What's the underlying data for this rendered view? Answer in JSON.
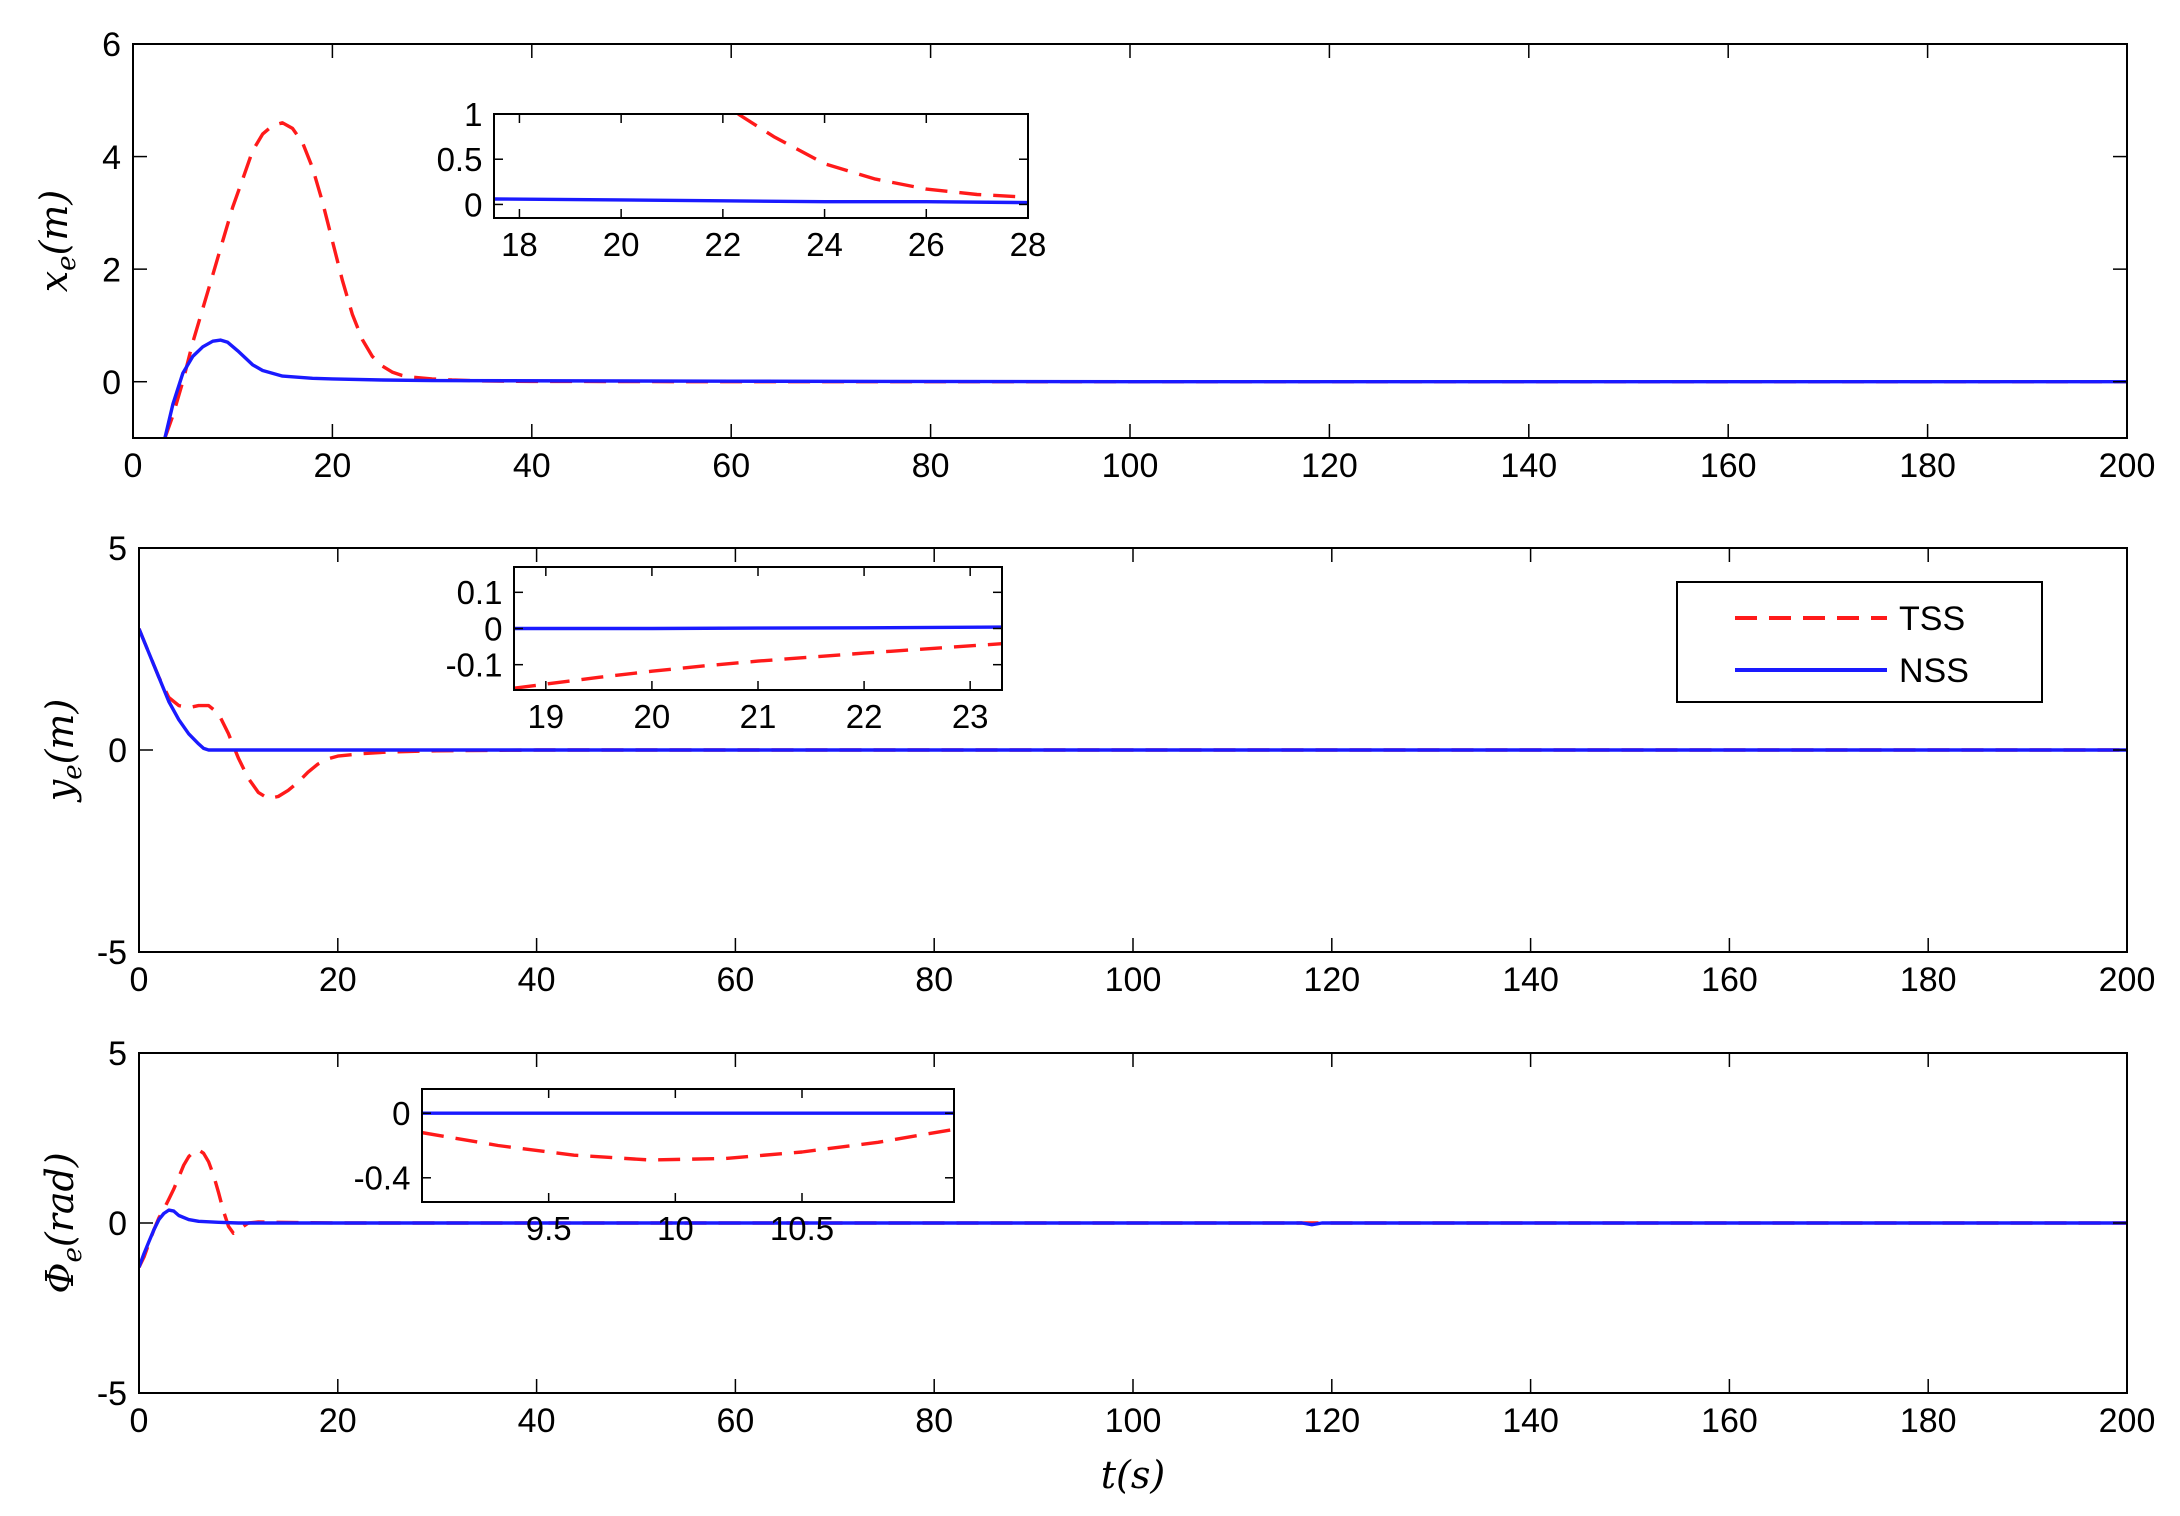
{
  "chart_data": [
    {
      "type": "line",
      "ylabel_sym": "x",
      "ylabel_sub": "e",
      "ylabel_unit": "(m)",
      "xlabel": "",
      "xlim": [
        0,
        200
      ],
      "ylim": [
        -1,
        6
      ],
      "xticks": [
        "0",
        "20",
        "40",
        "60",
        "80",
        "100",
        "120",
        "140",
        "160",
        "180",
        "200"
      ],
      "yticks": [
        "0",
        "2",
        "4",
        "6"
      ],
      "series": [
        {
          "name": "TSS",
          "color": "#ff1a1a",
          "style": "dashed",
          "x": [
            3.2,
            4,
            5,
            6,
            7,
            8,
            9,
            10,
            11,
            12,
            13,
            14,
            15,
            16,
            17,
            18,
            19,
            20,
            21,
            22,
            23,
            24,
            25,
            26,
            27,
            28,
            30,
            32,
            35,
            40,
            60,
            100,
            150,
            200
          ],
          "y": [
            -1,
            -0.6,
            0,
            0.7,
            1.3,
            1.9,
            2.5,
            3.1,
            3.6,
            4.1,
            4.4,
            4.55,
            4.6,
            4.5,
            4.25,
            3.8,
            3.2,
            2.5,
            1.8,
            1.2,
            0.75,
            0.45,
            0.28,
            0.17,
            0.11,
            0.08,
            0.05,
            0.03,
            0.015,
            0.005,
            0,
            0,
            0,
            0
          ]
        },
        {
          "name": "NSS",
          "color": "#1a1aff",
          "style": "solid",
          "x": [
            3.2,
            4,
            5,
            6,
            7,
            8,
            8.8,
            9.5,
            10.5,
            12,
            13,
            15,
            18,
            20,
            25,
            30,
            60,
            100,
            150,
            200
          ],
          "y": [
            -1,
            -0.4,
            0.15,
            0.45,
            0.62,
            0.72,
            0.74,
            0.7,
            0.55,
            0.3,
            0.2,
            0.1,
            0.06,
            0.05,
            0.03,
            0.02,
            0.01,
            0,
            0,
            0
          ]
        }
      ],
      "inset": {
        "xlim": [
          17.5,
          28
        ],
        "ylim": [
          -0.15,
          1
        ],
        "xticks": [
          "18",
          "20",
          "22",
          "24",
          "26",
          "28"
        ],
        "yticks": [
          "0",
          "0.5",
          "1"
        ],
        "series": [
          {
            "name": "TSS",
            "x": [
              22.3,
              23,
              24,
              25,
              26,
              27,
              28
            ],
            "y": [
              1,
              0.75,
              0.45,
              0.28,
              0.17,
              0.11,
              0.08
            ]
          },
          {
            "name": "NSS",
            "x": [
              17.5,
              20,
              22,
              24,
              26,
              28
            ],
            "y": [
              0.06,
              0.05,
              0.04,
              0.03,
              0.03,
              0.02
            ]
          }
        ]
      }
    },
    {
      "type": "line",
      "ylabel_sym": "y",
      "ylabel_sub": "e",
      "ylabel_unit": "(m)",
      "xlabel": "",
      "xlim": [
        0,
        200
      ],
      "ylim": [
        -5,
        5
      ],
      "xticks": [
        "0",
        "20",
        "40",
        "60",
        "80",
        "100",
        "120",
        "140",
        "160",
        "180",
        "200"
      ],
      "yticks": [
        "-5",
        "0",
        "5"
      ],
      "legend": {
        "placement": "top-right",
        "entries": [
          "TSS",
          "NSS"
        ]
      },
      "series": [
        {
          "name": "TSS",
          "color": "#ff1a1a",
          "style": "dashed",
          "x": [
            0,
            1,
            2,
            3,
            4,
            5,
            6,
            7,
            8,
            9,
            10,
            11,
            12,
            13,
            14,
            15,
            16,
            17,
            18,
            19,
            20,
            22,
            25,
            30,
            40,
            60,
            100,
            150,
            200
          ],
          "y": [
            3,
            2.4,
            1.8,
            1.3,
            1.1,
            1.05,
            1.1,
            1.1,
            0.9,
            0.4,
            -0.2,
            -0.7,
            -1.05,
            -1.2,
            -1.15,
            -1.0,
            -0.8,
            -0.55,
            -0.35,
            -0.22,
            -0.15,
            -0.1,
            -0.05,
            -0.02,
            0,
            0,
            0,
            0,
            0
          ]
        },
        {
          "name": "NSS",
          "color": "#1a1aff",
          "style": "solid",
          "x": [
            0,
            1,
            2,
            3,
            4,
            5,
            6,
            6.5,
            7,
            8,
            10,
            20,
            60,
            100,
            150,
            200
          ],
          "y": [
            3,
            2.4,
            1.8,
            1.2,
            0.75,
            0.4,
            0.15,
            0.04,
            0,
            0,
            0,
            0,
            0,
            0,
            0,
            0
          ]
        }
      ],
      "inset": {
        "xlim": [
          18.7,
          23.3
        ],
        "ylim": [
          -0.17,
          0.17
        ],
        "xticks": [
          "19",
          "20",
          "21",
          "22",
          "23"
        ],
        "yticks": [
          "0.1",
          "0",
          "-0.1"
        ],
        "series": [
          {
            "name": "TSS",
            "x": [
              18.7,
              19.5,
              20,
              20.5,
              21,
              21.5,
              22,
              22.5,
              23.3
            ],
            "y": [
              -0.165,
              -0.135,
              -0.118,
              -0.103,
              -0.09,
              -0.079,
              -0.068,
              -0.058,
              -0.042
            ]
          },
          {
            "name": "NSS",
            "x": [
              18.7,
              20,
              21,
              22,
              23.3
            ],
            "y": [
              0,
              0,
              0.001,
              0.002,
              0.004
            ]
          }
        ]
      }
    },
    {
      "type": "line",
      "ylabel_sym": "Φ",
      "ylabel_sub": "e",
      "ylabel_unit": "(rad)",
      "xlabel": "t(s)",
      "xlim": [
        0,
        200
      ],
      "ylim": [
        -5,
        5
      ],
      "xticks": [
        "0",
        "20",
        "40",
        "60",
        "80",
        "100",
        "120",
        "140",
        "160",
        "180",
        "200"
      ],
      "yticks": [
        "-5",
        "0",
        "5"
      ],
      "series": [
        {
          "name": "TSS",
          "color": "#ff1a1a",
          "style": "dashed",
          "x": [
            0,
            0.5,
            1,
            1.5,
            2,
            2.5,
            3,
            3.5,
            4,
            4.5,
            5,
            5.5,
            6,
            6.5,
            7,
            7.5,
            8,
            8.5,
            9,
            9.5,
            10,
            10.5,
            11,
            12,
            14,
            20,
            60,
            100,
            150,
            200
          ],
          "y": [
            -1.3,
            -1.0,
            -0.6,
            -0.2,
            0.15,
            0.4,
            0.7,
            1.0,
            1.35,
            1.7,
            1.95,
            2.1,
            2.15,
            2.05,
            1.8,
            1.4,
            0.9,
            0.35,
            -0.1,
            -0.3,
            -0.22,
            -0.1,
            0.0,
            0.03,
            0.02,
            0,
            0,
            0,
            0,
            0
          ]
        },
        {
          "name": "NSS",
          "color": "#1a1aff",
          "style": "solid",
          "x": [
            0,
            0.5,
            1,
            1.5,
            2,
            2.5,
            3,
            3.5,
            4,
            5,
            6,
            8,
            10,
            20,
            60,
            100,
            117,
            118,
            119,
            150,
            200
          ],
          "y": [
            -1.3,
            -0.9,
            -0.55,
            -0.2,
            0.1,
            0.28,
            0.38,
            0.35,
            0.22,
            0.1,
            0.05,
            0.02,
            0,
            0,
            0,
            0,
            0,
            -0.05,
            0,
            0,
            0
          ]
        }
      ],
      "inset": {
        "xlim": [
          9.0,
          11.1
        ],
        "ylim": [
          -0.55,
          0.15
        ],
        "xticks": [
          "9.5",
          "10",
          "10.5"
        ],
        "yticks": [
          "0",
          "-0.4"
        ],
        "series": [
          {
            "name": "TSS",
            "x": [
              9.0,
              9.3,
              9.6,
              9.9,
              10.2,
              10.5,
              10.8,
              11.1
            ],
            "y": [
              -0.12,
              -0.2,
              -0.26,
              -0.29,
              -0.28,
              -0.24,
              -0.18,
              -0.1
            ]
          },
          {
            "name": "NSS",
            "x": [
              9.0,
              10,
              11.1
            ],
            "y": [
              0,
              0,
              0
            ]
          }
        ]
      }
    }
  ]
}
